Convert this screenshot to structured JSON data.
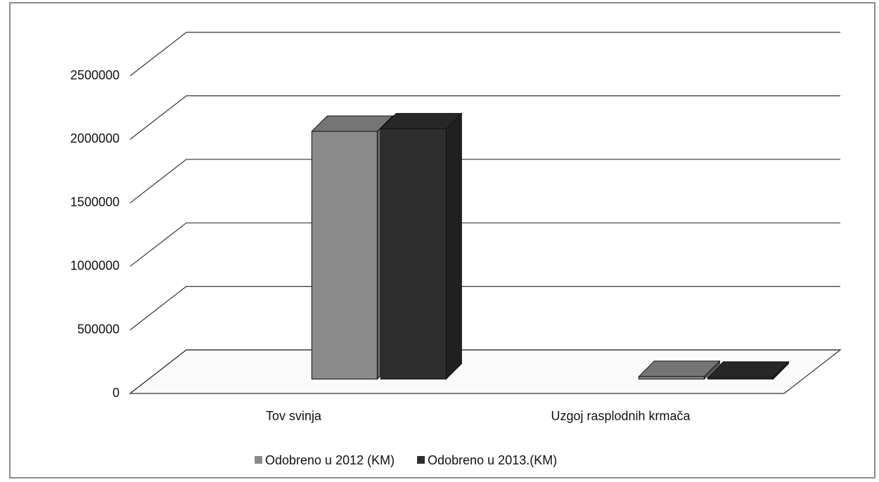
{
  "chart_data": {
    "type": "bar3d",
    "categories": [
      "Tov svinja",
      "Uzgoj rasplodnih krmača"
    ],
    "series": [
      {
        "name": "Odobreno u 2012 (KM)",
        "color": "#8a8a8a",
        "values": [
          1950000,
          20000
        ]
      },
      {
        "name": "Odobreno u 2013.(KM)",
        "color": "#2e2e2e",
        "values": [
          1970000,
          15000
        ]
      }
    ],
    "ylim": [
      0,
      2500000
    ],
    "yticks": [
      0,
      500000,
      1000000,
      1500000,
      2000000,
      2500000
    ],
    "grid": true,
    "legend": "bottom"
  }
}
